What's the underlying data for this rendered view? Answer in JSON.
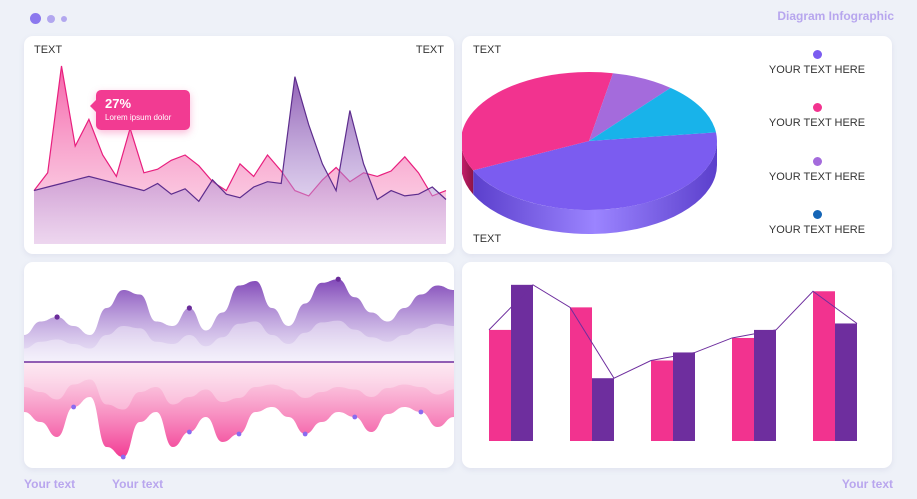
{
  "header": {
    "brand": "Diagram Infographic"
  },
  "footer": {
    "left1": "Your text",
    "left2": "Your text",
    "right": "Your text"
  },
  "panel_area": {
    "label_left": "TEXT",
    "label_right": "TEXT",
    "tooltip_value": "27%",
    "tooltip_text": "Lorem ipsum dolor"
  },
  "panel_pie": {
    "label_top": "TEXT",
    "label_bottom": "TEXT"
  },
  "legend": [
    {
      "label": "YOUR TEXT HERE",
      "color": "#7b5cf0"
    },
    {
      "label": "YOUR TEXT HERE",
      "color": "#f2338f"
    },
    {
      "label": "YOUR TEXT HERE",
      "color": "#a46bdc"
    },
    {
      "label": "YOUR TEXT HERE",
      "color": "#1565b6"
    }
  ],
  "colors": {
    "pink": "#f2338f",
    "violet": "#7b5cf0",
    "purple": "#6e2e9e",
    "sky": "#18b3ea",
    "lilac": "#a46bdc"
  },
  "chart_data": [
    {
      "type": "area",
      "title": "",
      "x": [
        0,
        1,
        2,
        3,
        4,
        5,
        6,
        7,
        8,
        9,
        10,
        11,
        12,
        13,
        14,
        15,
        16,
        17,
        18,
        19,
        20,
        21,
        22,
        23,
        24,
        25,
        26,
        27,
        28,
        29,
        30
      ],
      "series": [
        {
          "values": [
            30,
            40,
            100,
            55,
            70,
            50,
            38,
            65,
            40,
            42,
            47,
            50,
            44,
            35,
            30,
            45,
            38,
            50,
            41,
            30,
            27,
            36,
            43,
            35,
            40,
            38,
            41,
            49,
            40,
            27,
            30
          ]
        },
        {
          "values": [
            30,
            32,
            34,
            36,
            38,
            36,
            34,
            32,
            30,
            34,
            28,
            31,
            24,
            36,
            28,
            26,
            32,
            35,
            34,
            94,
            67,
            45,
            30,
            75,
            45,
            25,
            30,
            27,
            28,
            32,
            25
          ]
        }
      ]
    },
    {
      "type": "pie",
      "title": "",
      "values": [
        45,
        35,
        8,
        12
      ],
      "colors": [
        "#7b5cf0",
        "#f2338f",
        "#a46bdc",
        "#18b3ea"
      ]
    },
    {
      "type": "area",
      "title": "",
      "x": [
        0,
        1,
        2,
        3,
        4,
        5,
        6,
        7,
        8,
        9,
        10,
        11,
        12,
        13,
        14,
        15,
        16,
        17,
        18,
        19,
        20,
        21,
        22,
        23,
        24,
        25,
        26
      ],
      "series": [
        {
          "values": [
            0.3,
            0.45,
            0.5,
            0.4,
            0.3,
            0.6,
            0.8,
            0.75,
            0.45,
            0.4,
            0.6,
            0.35,
            0.55,
            0.85,
            0.9,
            0.6,
            0.4,
            0.65,
            0.88,
            0.92,
            0.72,
            0.55,
            0.45,
            0.6,
            0.75,
            0.85,
            0.8
          ]
        },
        {
          "values": [
            -0.5,
            -0.6,
            -0.75,
            -0.45,
            -0.35,
            -0.85,
            -0.95,
            -0.6,
            -0.5,
            -0.85,
            -0.7,
            -0.55,
            -0.8,
            -0.72,
            -0.5,
            -0.45,
            -0.55,
            -0.72,
            -0.6,
            -0.5,
            -0.55,
            -0.7,
            -0.52,
            -0.45,
            -0.5,
            -0.65,
            -0.55
          ]
        }
      ]
    },
    {
      "type": "bar",
      "title": "",
      "categories": [
        "1",
        "2",
        "3",
        "4",
        "5"
      ],
      "series": [
        {
          "values": [
            69,
            83,
            50,
            64,
            93
          ],
          "color": "#f2338f"
        },
        {
          "values": [
            97,
            39,
            55,
            69,
            73
          ],
          "color": "#6e2e9e"
        }
      ],
      "ylim": [
        0,
        100
      ]
    }
  ]
}
